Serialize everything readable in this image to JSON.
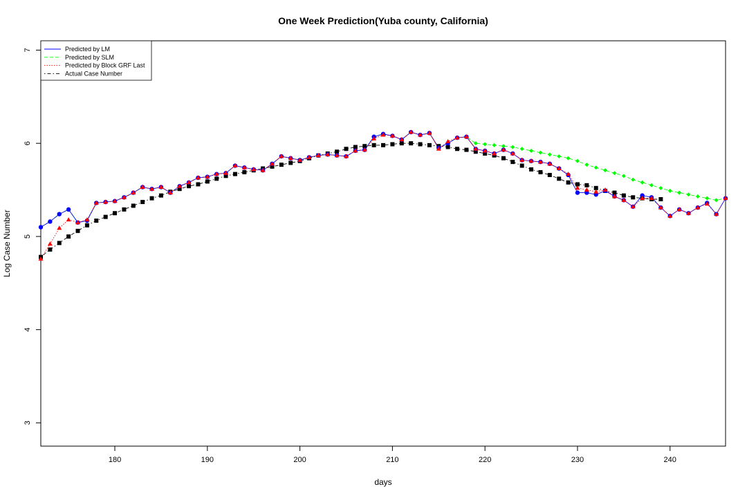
{
  "chart_data": {
    "type": "line",
    "title": "One Week Prediction(Yuba county, California)",
    "xlabel": "days",
    "ylabel": "Log Case Number",
    "xlim": [
      172,
      246
    ],
    "ylim": [
      2.75,
      7.1
    ],
    "xticks": [
      180,
      190,
      200,
      210,
      220,
      230,
      240
    ],
    "yticks": [
      3,
      4,
      5,
      6,
      7
    ],
    "grid": false,
    "legend_position": "top-left",
    "x": [
      172,
      173,
      174,
      175,
      176,
      177,
      178,
      179,
      180,
      181,
      182,
      183,
      184,
      185,
      186,
      187,
      188,
      189,
      190,
      191,
      192,
      193,
      194,
      195,
      196,
      197,
      198,
      199,
      200,
      201,
      202,
      203,
      204,
      205,
      206,
      207,
      208,
      209,
      210,
      211,
      212,
      213,
      214,
      215,
      216,
      217,
      218,
      219,
      220,
      221,
      222,
      223,
      224,
      225,
      226,
      227,
      228,
      229,
      230,
      231,
      232,
      233,
      234,
      235,
      236,
      237,
      238,
      239,
      240,
      241,
      242,
      243,
      244,
      245,
      246
    ],
    "series": [
      {
        "name": "Predicted by LM",
        "color": "#0000ff",
        "line_style": "solid",
        "marker": "circle-blue",
        "values": [
          5.1,
          5.16,
          5.24,
          5.29,
          5.15,
          5.17,
          5.36,
          5.37,
          5.38,
          5.42,
          5.47,
          5.53,
          5.51,
          5.53,
          5.47,
          5.54,
          5.58,
          5.63,
          5.64,
          5.67,
          5.68,
          5.76,
          5.74,
          5.72,
          5.71,
          5.78,
          5.86,
          5.84,
          5.82,
          5.85,
          5.87,
          5.88,
          5.87,
          5.86,
          5.92,
          5.93,
          6.07,
          6.1,
          6.08,
          6.04,
          6.12,
          6.09,
          6.11,
          5.95,
          6.0,
          6.06,
          6.07,
          5.94,
          5.92,
          5.89,
          5.93,
          5.89,
          5.82,
          5.81,
          5.8,
          5.78,
          5.73,
          5.66,
          5.47,
          5.47,
          5.45,
          5.49,
          5.43,
          5.39,
          5.32,
          5.44,
          5.42,
          5.31,
          5.22,
          5.29,
          5.25,
          5.31,
          5.36,
          5.24,
          5.41
        ]
      },
      {
        "name": "Predicted by SLM",
        "color": "#00ff00",
        "line_style": "dashed",
        "marker": "diamond-green",
        "values": [
          5.1,
          5.16,
          5.24,
          5.29,
          5.15,
          5.17,
          5.36,
          5.37,
          5.38,
          5.42,
          5.47,
          5.53,
          5.51,
          5.53,
          5.47,
          5.54,
          5.58,
          5.63,
          5.64,
          5.67,
          5.68,
          5.76,
          5.74,
          5.72,
          5.71,
          5.78,
          5.86,
          5.84,
          5.82,
          5.85,
          5.87,
          5.88,
          5.87,
          5.86,
          5.92,
          5.93,
          6.07,
          6.1,
          6.08,
          6.04,
          6.12,
          6.09,
          6.11,
          5.95,
          6.0,
          6.06,
          6.07,
          6.0,
          5.99,
          5.98,
          5.97,
          5.96,
          5.94,
          5.92,
          5.9,
          5.88,
          5.86,
          5.84,
          5.81,
          5.77,
          5.74,
          5.71,
          5.68,
          5.65,
          5.61,
          5.58,
          5.55,
          5.52,
          5.49,
          5.47,
          5.45,
          5.43,
          5.41,
          5.39,
          5.41
        ]
      },
      {
        "name": "Predicted by Block GRF Last",
        "color": "#ff0000",
        "line_style": "dotted",
        "marker": "triangle-red",
        "values": [
          4.76,
          4.92,
          5.09,
          5.18,
          5.15,
          5.18,
          5.36,
          5.37,
          5.38,
          5.42,
          5.47,
          5.53,
          5.51,
          5.53,
          5.47,
          5.54,
          5.58,
          5.63,
          5.64,
          5.67,
          5.68,
          5.76,
          5.74,
          5.72,
          5.71,
          5.78,
          5.86,
          5.84,
          5.82,
          5.85,
          5.87,
          5.88,
          5.87,
          5.86,
          5.92,
          5.93,
          6.05,
          6.09,
          6.08,
          6.04,
          6.12,
          6.09,
          6.11,
          5.94,
          6.02,
          6.06,
          6.07,
          5.94,
          5.92,
          5.89,
          5.93,
          5.89,
          5.82,
          5.81,
          5.8,
          5.78,
          5.73,
          5.67,
          5.52,
          5.5,
          5.48,
          5.5,
          5.43,
          5.39,
          5.32,
          5.41,
          5.41,
          5.31,
          5.22,
          5.29,
          5.25,
          5.31,
          5.35,
          5.24,
          5.41
        ]
      },
      {
        "name": "Actual Case Number",
        "color": "#000000",
        "line_style": "dotdash",
        "marker": "square-black",
        "values": [
          4.78,
          4.86,
          4.93,
          5.0,
          5.06,
          5.12,
          5.17,
          5.21,
          5.25,
          5.29,
          5.33,
          5.37,
          5.41,
          5.44,
          5.48,
          5.51,
          5.54,
          5.56,
          5.59,
          5.62,
          5.65,
          5.67,
          5.69,
          5.71,
          5.73,
          5.75,
          5.77,
          5.79,
          5.81,
          5.84,
          5.87,
          5.89,
          5.91,
          5.94,
          5.96,
          5.97,
          5.98,
          5.98,
          5.99,
          6.0,
          6.0,
          5.99,
          5.98,
          5.97,
          5.96,
          5.94,
          5.93,
          5.91,
          5.89,
          5.87,
          5.84,
          5.8,
          5.76,
          5.72,
          5.69,
          5.66,
          5.62,
          5.58,
          5.56,
          5.55,
          5.52,
          5.49,
          5.47,
          5.44,
          5.42,
          5.41,
          5.4,
          5.4,
          null,
          null,
          null,
          null,
          null,
          null,
          null
        ]
      }
    ]
  }
}
